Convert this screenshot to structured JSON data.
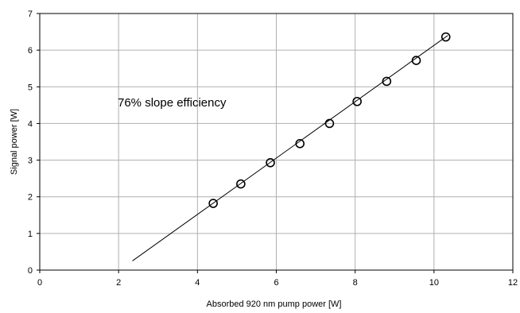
{
  "chart_data": {
    "type": "scatter",
    "title": "",
    "xlabel": "Absorbed 920 nm pump power [W]",
    "ylabel": "Signal power [W]",
    "xlim": [
      0,
      12
    ],
    "ylim": [
      0,
      7
    ],
    "xticks": [
      0,
      2,
      4,
      6,
      8,
      10,
      12
    ],
    "yticks": [
      0,
      1,
      2,
      3,
      4,
      5,
      6,
      7
    ],
    "grid": true,
    "legend": "none",
    "annotation": "76% slope efficiency",
    "series": [
      {
        "marker": "open-circle",
        "x": [
          4.4,
          5.1,
          5.85,
          6.6,
          7.35,
          8.05,
          8.8,
          9.55,
          10.3
        ],
        "y": [
          1.82,
          2.35,
          2.93,
          3.45,
          4.0,
          4.6,
          5.15,
          5.72,
          6.36
        ]
      }
    ],
    "fit_line": {
      "x": [
        2.35,
        10.35
      ],
      "y": [
        0.25,
        6.4
      ]
    }
  }
}
